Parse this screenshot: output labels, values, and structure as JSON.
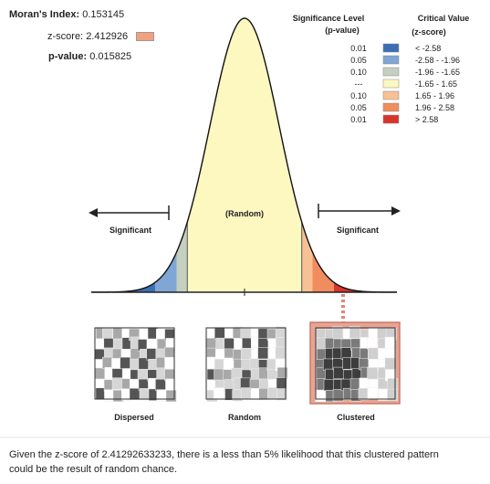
{
  "stats": {
    "morans_index_label": "Moran's Index:",
    "morans_index_value": "0.153145",
    "z_score_label": "z-score:",
    "z_score_value": "2.412926",
    "p_value_label": "p-value:",
    "p_value_value": "0.015825",
    "z_score_swatch_color": "#f4a07c"
  },
  "legend": {
    "sig_header_line1": "Significance Level",
    "sig_header_line2": "(p-value)",
    "crit_header_line1": "Critical Value",
    "crit_header_line2": "(z-score)",
    "rows": [
      {
        "p": "0.01",
        "z": "< -2.58",
        "color": "#3a6fb5"
      },
      {
        "p": "0.05",
        "z": "-2.58 - -1.96",
        "color": "#7fa6d4"
      },
      {
        "p": "0.10",
        "z": "-1.96 - -1.65",
        "color": "#c5cfbf"
      },
      {
        "p": "---",
        "z": "-1.65 - 1.65",
        "color": "#fdf7c0"
      },
      {
        "p": "0.10",
        "z": "1.65 - 1.96",
        "color": "#f7c194"
      },
      {
        "p": "0.05",
        "z": "1.96 - 2.58",
        "color": "#f08c5e"
      },
      {
        "p": "0.01",
        "z": "> 2.58",
        "color": "#d9342b"
      }
    ]
  },
  "curve": {
    "random_label": "(Random)",
    "significant_left": "Significant",
    "significant_right": "Significant"
  },
  "maps": {
    "dispersed_label": "Dispersed",
    "random_label": "Random",
    "clustered_label": "Clustered"
  },
  "caption": "Given the z-score of 2.41292633233, there is a less than 5% likelihood that this clustered pattern could be the result of random chance."
}
